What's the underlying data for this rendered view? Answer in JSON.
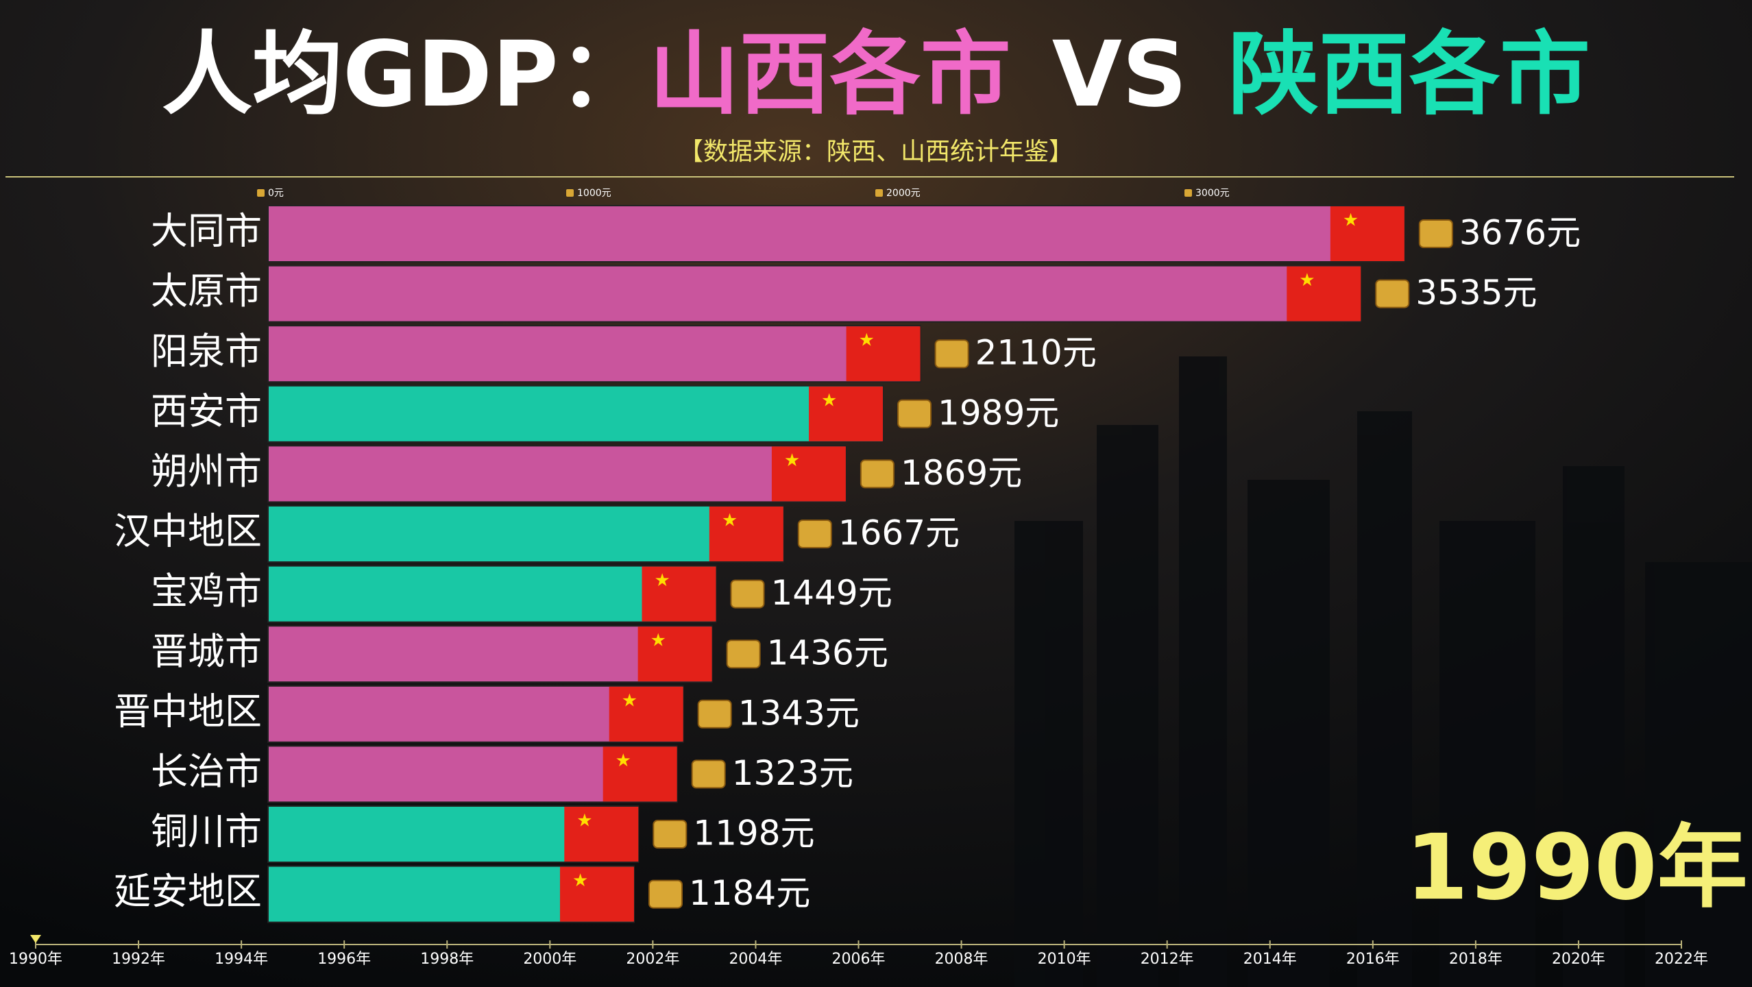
{
  "chart_data": {
    "type": "bar",
    "orientation": "horizontal",
    "title_parts": [
      "人均GDP：",
      "山西各市",
      "VS",
      "陕西各市"
    ],
    "subtitle": "【数据来源：陕西、山西统计年鉴】",
    "categories": [
      "大同市",
      "太原市",
      "阳泉市",
      "西安市",
      "朔州市",
      "汉中地区",
      "宝鸡市",
      "晋城市",
      "晋中地区",
      "长治市",
      "铜川市",
      "延安地区"
    ],
    "values": [
      3676,
      3535,
      2110,
      1989,
      1869,
      1667,
      1449,
      1436,
      1343,
      1323,
      1198,
      1184
    ],
    "value_labels": [
      "3676元",
      "3535元",
      "2110元",
      "1989元",
      "1869元",
      "1667元",
      "1449元",
      "1436元",
      "1343元",
      "1323元",
      "1198元",
      "1184元"
    ],
    "colors": [
      "#c9559d",
      "#c9559d",
      "#c9559d",
      "#19c8a5",
      "#c9559d",
      "#19c8a5",
      "#19c8a5",
      "#c9559d",
      "#c9559d",
      "#c9559d",
      "#19c8a5",
      "#19c8a5"
    ],
    "xlim": [
      0,
      4000
    ],
    "xticks": [
      {
        "value": 0,
        "label": "0元"
      },
      {
        "value": 1000,
        "label": "1000元"
      },
      {
        "value": 2000,
        "label": "2000元"
      },
      {
        "value": 3000,
        "label": "3000元"
      }
    ],
    "year_label": "1990年",
    "timeline": {
      "xlim": [
        1990,
        2022
      ],
      "xticks": [
        {
          "value": 1990,
          "label": "1990年"
        },
        {
          "value": 1992,
          "label": "1992年"
        },
        {
          "value": 1994,
          "label": "1994年"
        },
        {
          "value": 1996,
          "label": "1996年"
        },
        {
          "value": 1998,
          "label": "1998年"
        },
        {
          "value": 2000,
          "label": "2000年"
        },
        {
          "value": 2002,
          "label": "2002年"
        },
        {
          "value": 2004,
          "label": "2004年"
        },
        {
          "value": 2006,
          "label": "2006年"
        },
        {
          "value": 2008,
          "label": "2008年"
        },
        {
          "value": 2010,
          "label": "2010年"
        },
        {
          "value": 2012,
          "label": "2012年"
        },
        {
          "value": 2014,
          "label": "2014年"
        },
        {
          "value": 2016,
          "label": "2016年"
        },
        {
          "value": 2018,
          "label": "2018年"
        },
        {
          "value": 2020,
          "label": "2020年"
        },
        {
          "value": 2022,
          "label": "2022年"
        }
      ]
    }
  }
}
